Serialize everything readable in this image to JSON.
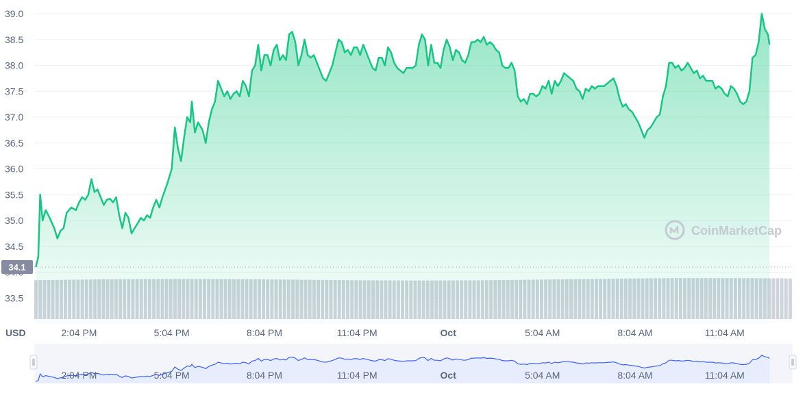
{
  "chart_data": {
    "type": "area",
    "unit_label": "USD",
    "current_price_label": "34.1",
    "watermark": "CoinMarketCap",
    "y_ticks": [
      "39.0",
      "38.5",
      "38.0",
      "37.5",
      "37.0",
      "36.5",
      "36.0",
      "35.5",
      "35.0",
      "34.5",
      "34.0",
      "33.5"
    ],
    "ylim": [
      33.0,
      39.25
    ],
    "x_ticks": [
      {
        "label": "2:04 PM",
        "t": 0.5
      },
      {
        "label": "5:04 PM",
        "t": 3.5
      },
      {
        "label": "8:04 PM",
        "t": 6.5
      },
      {
        "label": "11:04 PM",
        "t": 9.5
      },
      {
        "label": "Oct",
        "t": 12.45,
        "bold": true
      },
      {
        "label": "5:04 AM",
        "t": 15.5
      },
      {
        "label": "8:04 AM",
        "t": 18.5
      },
      {
        "label": "11:04 AM",
        "t": 21.4
      }
    ],
    "x_range": [
      -0.95,
      23.6
    ],
    "series": [
      {
        "values": [
          [
            -0.9,
            34.1
          ],
          [
            -0.82,
            34.3
          ],
          [
            -0.76,
            35.5
          ],
          [
            -0.68,
            35.0
          ],
          [
            -0.58,
            35.2
          ],
          [
            -0.45,
            35.05
          ],
          [
            -0.3,
            34.85
          ],
          [
            -0.2,
            34.65
          ],
          [
            -0.1,
            34.8
          ],
          [
            0.0,
            34.85
          ],
          [
            0.1,
            35.15
          ],
          [
            0.25,
            35.25
          ],
          [
            0.4,
            35.2
          ],
          [
            0.5,
            35.35
          ],
          [
            0.6,
            35.45
          ],
          [
            0.7,
            35.4
          ],
          [
            0.8,
            35.5
          ],
          [
            0.9,
            35.8
          ],
          [
            1.0,
            35.55
          ],
          [
            1.1,
            35.6
          ],
          [
            1.2,
            35.45
          ],
          [
            1.3,
            35.3
          ],
          [
            1.4,
            35.4
          ],
          [
            1.5,
            35.42
          ],
          [
            1.6,
            35.35
          ],
          [
            1.7,
            35.45
          ],
          [
            1.8,
            35.1
          ],
          [
            1.9,
            34.85
          ],
          [
            2.0,
            35.15
          ],
          [
            2.1,
            35.05
          ],
          [
            2.2,
            34.75
          ],
          [
            2.3,
            34.85
          ],
          [
            2.4,
            34.95
          ],
          [
            2.5,
            35.05
          ],
          [
            2.6,
            35.0
          ],
          [
            2.7,
            35.1
          ],
          [
            2.8,
            35.05
          ],
          [
            2.9,
            35.25
          ],
          [
            3.0,
            35.4
          ],
          [
            3.1,
            35.25
          ],
          [
            3.2,
            35.45
          ],
          [
            3.35,
            35.7
          ],
          [
            3.5,
            36.0
          ],
          [
            3.6,
            36.8
          ],
          [
            3.7,
            36.4
          ],
          [
            3.8,
            36.15
          ],
          [
            3.9,
            36.6
          ],
          [
            4.0,
            37.0
          ],
          [
            4.1,
            36.9
          ],
          [
            4.15,
            37.3
          ],
          [
            4.25,
            36.7
          ],
          [
            4.35,
            36.9
          ],
          [
            4.5,
            36.75
          ],
          [
            4.6,
            36.5
          ],
          [
            4.7,
            36.9
          ],
          [
            4.8,
            37.15
          ],
          [
            4.9,
            37.3
          ],
          [
            5.0,
            37.7
          ],
          [
            5.1,
            37.55
          ],
          [
            5.2,
            37.4
          ],
          [
            5.3,
            37.5
          ],
          [
            5.4,
            37.35
          ],
          [
            5.5,
            37.45
          ],
          [
            5.6,
            37.5
          ],
          [
            5.7,
            37.4
          ],
          [
            5.8,
            37.7
          ],
          [
            5.9,
            37.6
          ],
          [
            6.0,
            37.4
          ],
          [
            6.1,
            37.9
          ],
          [
            6.2,
            38.0
          ],
          [
            6.3,
            38.4
          ],
          [
            6.4,
            37.9
          ],
          [
            6.5,
            38.2
          ],
          [
            6.6,
            38.2
          ],
          [
            6.7,
            38.0
          ],
          [
            6.8,
            38.3
          ],
          [
            6.9,
            38.4
          ],
          [
            7.0,
            38.1
          ],
          [
            7.1,
            38.2
          ],
          [
            7.2,
            38.1
          ],
          [
            7.3,
            38.6
          ],
          [
            7.4,
            38.65
          ],
          [
            7.5,
            38.45
          ],
          [
            7.6,
            38.0
          ],
          [
            7.7,
            38.2
          ],
          [
            7.8,
            38.5
          ],
          [
            7.9,
            38.2
          ],
          [
            8.0,
            38.15
          ],
          [
            8.1,
            38.2
          ],
          [
            8.2,
            38.05
          ],
          [
            8.3,
            37.9
          ],
          [
            8.4,
            37.75
          ],
          [
            8.5,
            37.7
          ],
          [
            8.6,
            37.85
          ],
          [
            8.7,
            38.0
          ],
          [
            8.8,
            38.25
          ],
          [
            8.9,
            38.5
          ],
          [
            9.0,
            38.45
          ],
          [
            9.1,
            38.25
          ],
          [
            9.2,
            38.3
          ],
          [
            9.3,
            38.2
          ],
          [
            9.4,
            38.35
          ],
          [
            9.5,
            38.35
          ],
          [
            9.6,
            38.2
          ],
          [
            9.7,
            38.4
          ],
          [
            9.8,
            38.25
          ],
          [
            9.9,
            38.1
          ],
          [
            10.0,
            37.95
          ],
          [
            10.1,
            37.9
          ],
          [
            10.2,
            38.15
          ],
          [
            10.3,
            38.15
          ],
          [
            10.4,
            38.0
          ],
          [
            10.5,
            38.35
          ],
          [
            10.6,
            38.25
          ],
          [
            10.7,
            38.05
          ],
          [
            10.8,
            37.95
          ],
          [
            10.9,
            37.9
          ],
          [
            11.0,
            37.85
          ],
          [
            11.1,
            37.95
          ],
          [
            11.2,
            37.95
          ],
          [
            11.3,
            37.95
          ],
          [
            11.4,
            38.0
          ],
          [
            11.5,
            38.4
          ],
          [
            11.6,
            38.6
          ],
          [
            11.7,
            38.5
          ],
          [
            11.8,
            38.0
          ],
          [
            11.9,
            38.4
          ],
          [
            12.0,
            38.05
          ],
          [
            12.1,
            38.05
          ],
          [
            12.2,
            37.95
          ],
          [
            12.3,
            38.3
          ],
          [
            12.4,
            38.5
          ],
          [
            12.5,
            38.35
          ],
          [
            12.6,
            38.1
          ],
          [
            12.7,
            38.3
          ],
          [
            12.8,
            38.25
          ],
          [
            12.9,
            38.1
          ],
          [
            13.0,
            38.05
          ],
          [
            13.1,
            38.2
          ],
          [
            13.2,
            38.45
          ],
          [
            13.3,
            38.45
          ],
          [
            13.4,
            38.5
          ],
          [
            13.5,
            38.45
          ],
          [
            13.6,
            38.55
          ],
          [
            13.7,
            38.4
          ],
          [
            13.8,
            38.45
          ],
          [
            13.9,
            38.4
          ],
          [
            14.0,
            38.3
          ],
          [
            14.1,
            38.25
          ],
          [
            14.2,
            38.0
          ],
          [
            14.3,
            37.95
          ],
          [
            14.4,
            37.95
          ],
          [
            14.5,
            38.05
          ],
          [
            14.6,
            37.9
          ],
          [
            14.7,
            37.4
          ],
          [
            14.8,
            37.3
          ],
          [
            14.9,
            37.35
          ],
          [
            15.0,
            37.25
          ],
          [
            15.1,
            37.45
          ],
          [
            15.2,
            37.45
          ],
          [
            15.3,
            37.4
          ],
          [
            15.4,
            37.45
          ],
          [
            15.5,
            37.6
          ],
          [
            15.6,
            37.55
          ],
          [
            15.7,
            37.7
          ],
          [
            15.8,
            37.45
          ],
          [
            15.9,
            37.7
          ],
          [
            16.0,
            37.6
          ],
          [
            16.1,
            37.7
          ],
          [
            16.2,
            37.85
          ],
          [
            16.3,
            37.8
          ],
          [
            16.4,
            37.75
          ],
          [
            16.5,
            37.7
          ],
          [
            16.6,
            37.55
          ],
          [
            16.7,
            37.5
          ],
          [
            16.8,
            37.35
          ],
          [
            16.9,
            37.55
          ],
          [
            17.0,
            37.5
          ],
          [
            17.1,
            37.6
          ],
          [
            17.2,
            37.55
          ],
          [
            17.3,
            37.6
          ],
          [
            17.4,
            37.6
          ],
          [
            17.5,
            37.6
          ],
          [
            17.6,
            37.65
          ],
          [
            17.7,
            37.7
          ],
          [
            17.8,
            37.75
          ],
          [
            17.9,
            37.6
          ],
          [
            18.0,
            37.35
          ],
          [
            18.1,
            37.2
          ],
          [
            18.2,
            37.25
          ],
          [
            18.3,
            37.15
          ],
          [
            18.4,
            37.1
          ],
          [
            18.5,
            37.0
          ],
          [
            18.6,
            36.9
          ],
          [
            18.7,
            36.75
          ],
          [
            18.8,
            36.6
          ],
          [
            18.9,
            36.75
          ],
          [
            19.0,
            36.8
          ],
          [
            19.1,
            36.9
          ],
          [
            19.2,
            37.0
          ],
          [
            19.3,
            37.05
          ],
          [
            19.4,
            37.4
          ],
          [
            19.5,
            37.6
          ],
          [
            19.6,
            38.05
          ],
          [
            19.7,
            38.05
          ],
          [
            19.8,
            37.95
          ],
          [
            19.9,
            38.0
          ],
          [
            20.0,
            37.9
          ],
          [
            20.1,
            37.95
          ],
          [
            20.2,
            38.05
          ],
          [
            20.3,
            37.95
          ],
          [
            20.4,
            37.85
          ],
          [
            20.5,
            37.9
          ],
          [
            20.6,
            37.75
          ],
          [
            20.7,
            37.8
          ],
          [
            20.8,
            37.7
          ],
          [
            20.9,
            37.7
          ],
          [
            21.0,
            37.7
          ],
          [
            21.1,
            37.55
          ],
          [
            21.2,
            37.6
          ],
          [
            21.3,
            37.55
          ],
          [
            21.4,
            37.45
          ],
          [
            21.5,
            37.4
          ],
          [
            21.6,
            37.6
          ],
          [
            21.7,
            37.55
          ],
          [
            21.8,
            37.45
          ],
          [
            21.9,
            37.3
          ],
          [
            22.0,
            37.25
          ],
          [
            22.1,
            37.3
          ],
          [
            22.2,
            37.5
          ],
          [
            22.3,
            38.15
          ],
          [
            22.4,
            38.2
          ],
          [
            22.5,
            38.45
          ],
          [
            22.6,
            39.0
          ],
          [
            22.7,
            38.7
          ],
          [
            22.8,
            38.6
          ],
          [
            22.85,
            38.4
          ]
        ]
      }
    ],
    "volume_bars": {
      "count": 180,
      "levels": [
        0.55,
        0.62
      ]
    },
    "navigator_labels": [
      "2:04 PM",
      "5:04 PM",
      "8:04 PM",
      "11:04 PM",
      "Oct",
      "5:04 AM",
      "8:04 AM",
      "11:04 AM"
    ],
    "colors": {
      "line": "#16c784",
      "nav_line": "#3861fb",
      "nav_fill": "#e8edfe",
      "label_bg": "#858ca2",
      "volume": "#cfd3dd"
    }
  }
}
